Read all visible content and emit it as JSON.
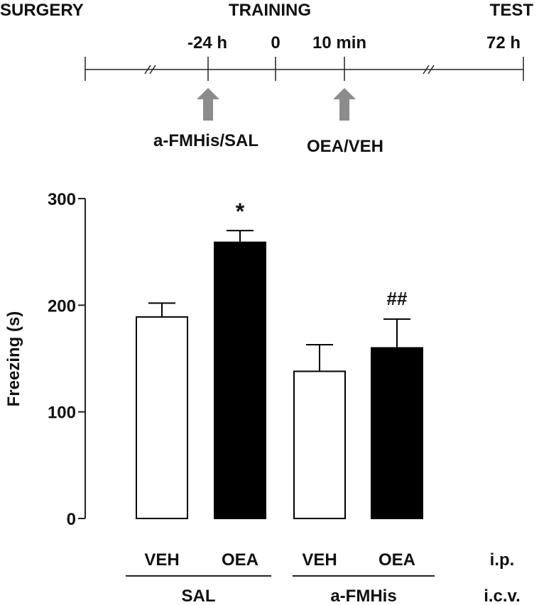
{
  "timeline": {
    "phases": [
      {
        "key": "surgery",
        "label": "SURGERY"
      },
      {
        "key": "training",
        "label": "TRAINING"
      },
      {
        "key": "test",
        "label": "TEST"
      }
    ],
    "ticks": [
      {
        "key": "minus24h",
        "label": "-24 h"
      },
      {
        "key": "zero",
        "label": "0"
      },
      {
        "key": "tenmin",
        "label": "10 min"
      },
      {
        "key": "seventytwoh",
        "label": "72 h"
      }
    ],
    "injections": [
      {
        "key": "first",
        "label": "a-FMHis/SAL"
      },
      {
        "key": "second",
        "label": "OEA/VEH"
      }
    ],
    "arrow_color": "#8c8c8c"
  },
  "chart_data": {
    "type": "bar",
    "ylabel": "Freezing (s)",
    "ylim": [
      0,
      300
    ],
    "yticks": [
      0,
      100,
      200,
      300
    ],
    "bars": [
      {
        "ip": "VEH",
        "icv": "SAL",
        "value": 189,
        "error": 13,
        "fill": "#ffffff",
        "annotation": ""
      },
      {
        "ip": "OEA",
        "icv": "SAL",
        "value": 259,
        "error": 11,
        "fill": "#000000",
        "annotation": "*"
      },
      {
        "ip": "VEH",
        "icv": "a-FMHis",
        "value": 138,
        "error": 25,
        "fill": "#ffffff",
        "annotation": ""
      },
      {
        "ip": "OEA",
        "icv": "a-FMHis",
        "value": 160,
        "error": 27,
        "fill": "#000000",
        "annotation": "##"
      }
    ],
    "groups": [
      {
        "label": "SAL"
      },
      {
        "label": "a-FMHis"
      }
    ],
    "row_labels": {
      "ip": "i.p.",
      "icv": "i.c.v."
    }
  }
}
